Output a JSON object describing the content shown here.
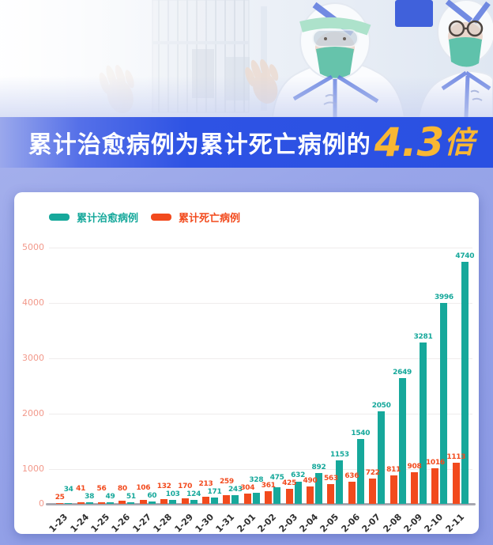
{
  "header": {
    "title_prefix": "累计治愈病例为累计死亡病例的",
    "title_highlight": "4.3",
    "title_suffix": "倍"
  },
  "legend": {
    "items": [
      {
        "label": "累计治愈病例",
        "color": "#16a89b"
      },
      {
        "label": "累计死亡病例",
        "color": "#f24a1d"
      }
    ]
  },
  "chart_data": {
    "type": "bar",
    "title": "累计治愈病例为累计死亡病例的4.3倍",
    "categories": [
      "1-23",
      "1-24",
      "1-25",
      "1-26",
      "1-27",
      "1-28",
      "1-29",
      "1-30",
      "1-31",
      "2-01",
      "2-02",
      "2-03",
      "2-04",
      "2-05",
      "2-06",
      "2-07",
      "2-08",
      "2-09",
      "2-10",
      "2-11"
    ],
    "series": [
      {
        "name": "累计死亡病例",
        "color": "#f24a1d",
        "values": [
          25,
          41,
          56,
          80,
          106,
          132,
          170,
          213,
          259,
          304,
          361,
          425,
          490,
          563,
          636,
          722,
          811,
          908,
          1016,
          1113
        ]
      },
      {
        "name": "累计治愈病例",
        "color": "#16a89b",
        "values": [
          34,
          38,
          49,
          51,
          60,
          103,
          124,
          171,
          243,
          328,
          475,
          632,
          892,
          1153,
          1540,
          2050,
          2649,
          3281,
          3996,
          4740
        ]
      }
    ],
    "xlabel": "",
    "ylabel": "",
    "ylim": [
      0,
      5000
    ],
    "yticks": [
      0,
      1000,
      2000,
      3000,
      4000,
      5000
    ],
    "ytick_color": "#f2998b",
    "grid": true,
    "legend_position": "top-left",
    "value_labels": true
  },
  "colors": {
    "band_blue": "#2b50e2",
    "highlight_gold": "#f9b733",
    "background_periwinkle": "#97a3e8",
    "cured_teal": "#16a89b",
    "death_red": "#f24a1d",
    "axis_label_salmon": "#f2998b"
  }
}
